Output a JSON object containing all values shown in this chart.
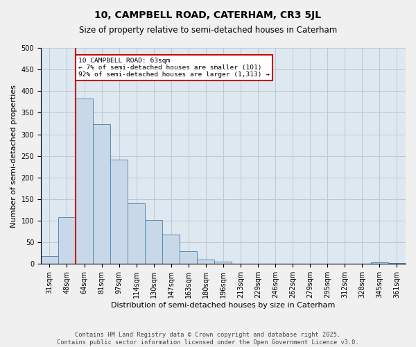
{
  "title1": "10, CAMPBELL ROAD, CATERHAM, CR3 5JL",
  "title2": "Size of property relative to semi-detached houses in Caterham",
  "xlabel": "Distribution of semi-detached houses by size in Caterham",
  "ylabel": "Number of semi-detached properties",
  "bin_labels": [
    "31sqm",
    "48sqm",
    "64sqm",
    "81sqm",
    "97sqm",
    "114sqm",
    "130sqm",
    "147sqm",
    "163sqm",
    "180sqm",
    "196sqm",
    "213sqm",
    "229sqm",
    "246sqm",
    "262sqm",
    "279sqm",
    "295sqm",
    "312sqm",
    "328sqm",
    "345sqm",
    "361sqm"
  ],
  "bar_values": [
    19,
    108,
    383,
    323,
    241,
    141,
    101,
    68,
    29,
    10,
    6,
    0,
    0,
    0,
    0,
    1,
    0,
    0,
    0,
    3,
    2
  ],
  "bar_color": "#c8d8e8",
  "bar_edge_color": "#5a8ab0",
  "grid_color": "#c0c8d8",
  "background_color": "#dde8f0",
  "annotation_box_color": "#cc0000",
  "vline_color": "#cc0000",
  "annotation_text": "10 CAMPBELL ROAD: 63sqm\n← 7% of semi-detached houses are smaller (101)\n92% of semi-detached houses are larger (1,313) →",
  "footer_text": "Contains HM Land Registry data © Crown copyright and database right 2025.\nContains public sector information licensed under the Open Government Licence v3.0.",
  "ylim": [
    0,
    500
  ],
  "yticks": [
    0,
    50,
    100,
    150,
    200,
    250,
    300,
    350,
    400,
    450,
    500
  ]
}
